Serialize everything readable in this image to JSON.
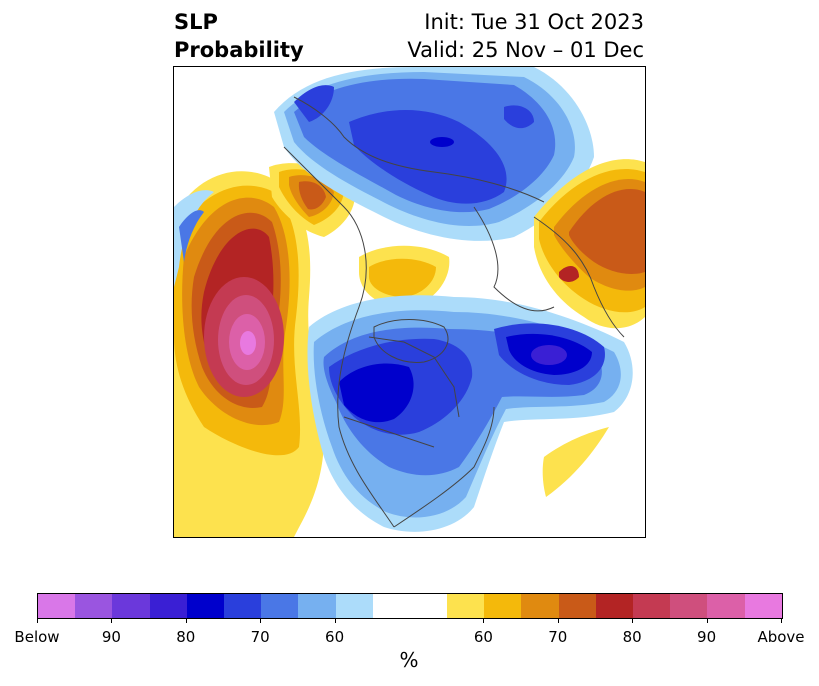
{
  "title": {
    "left_line1": "SLP",
    "left_line2": "Probability",
    "right_line1": "Init: Tue 31 Oct 2023",
    "right_line2": "Valid: 25 Nov – 01 Dec"
  },
  "colorbar": {
    "unit": "%",
    "colors": [
      "#d977e8",
      "#9a55e0",
      "#6b38db",
      "#3a1fd4",
      "#0000cc",
      "#2a3fdc",
      "#4a77e6",
      "#76b0f0",
      "#acdcfa",
      "#ffffff",
      "#ffffff",
      "#fde24e",
      "#f4b90b",
      "#e08a10",
      "#c95a18",
      "#b32424",
      "#c43a52",
      "#cf4f7d",
      "#dc60a8",
      "#e879e0"
    ],
    "ticks": [
      {
        "label": "Below"
      },
      {
        "label": "90"
      },
      {
        "label": "80"
      },
      {
        "label": "70"
      },
      {
        "label": "60"
      },
      {
        "label": "60"
      },
      {
        "label": "70"
      },
      {
        "label": "80"
      },
      {
        "label": "90"
      },
      {
        "label": "Above"
      }
    ]
  }
}
